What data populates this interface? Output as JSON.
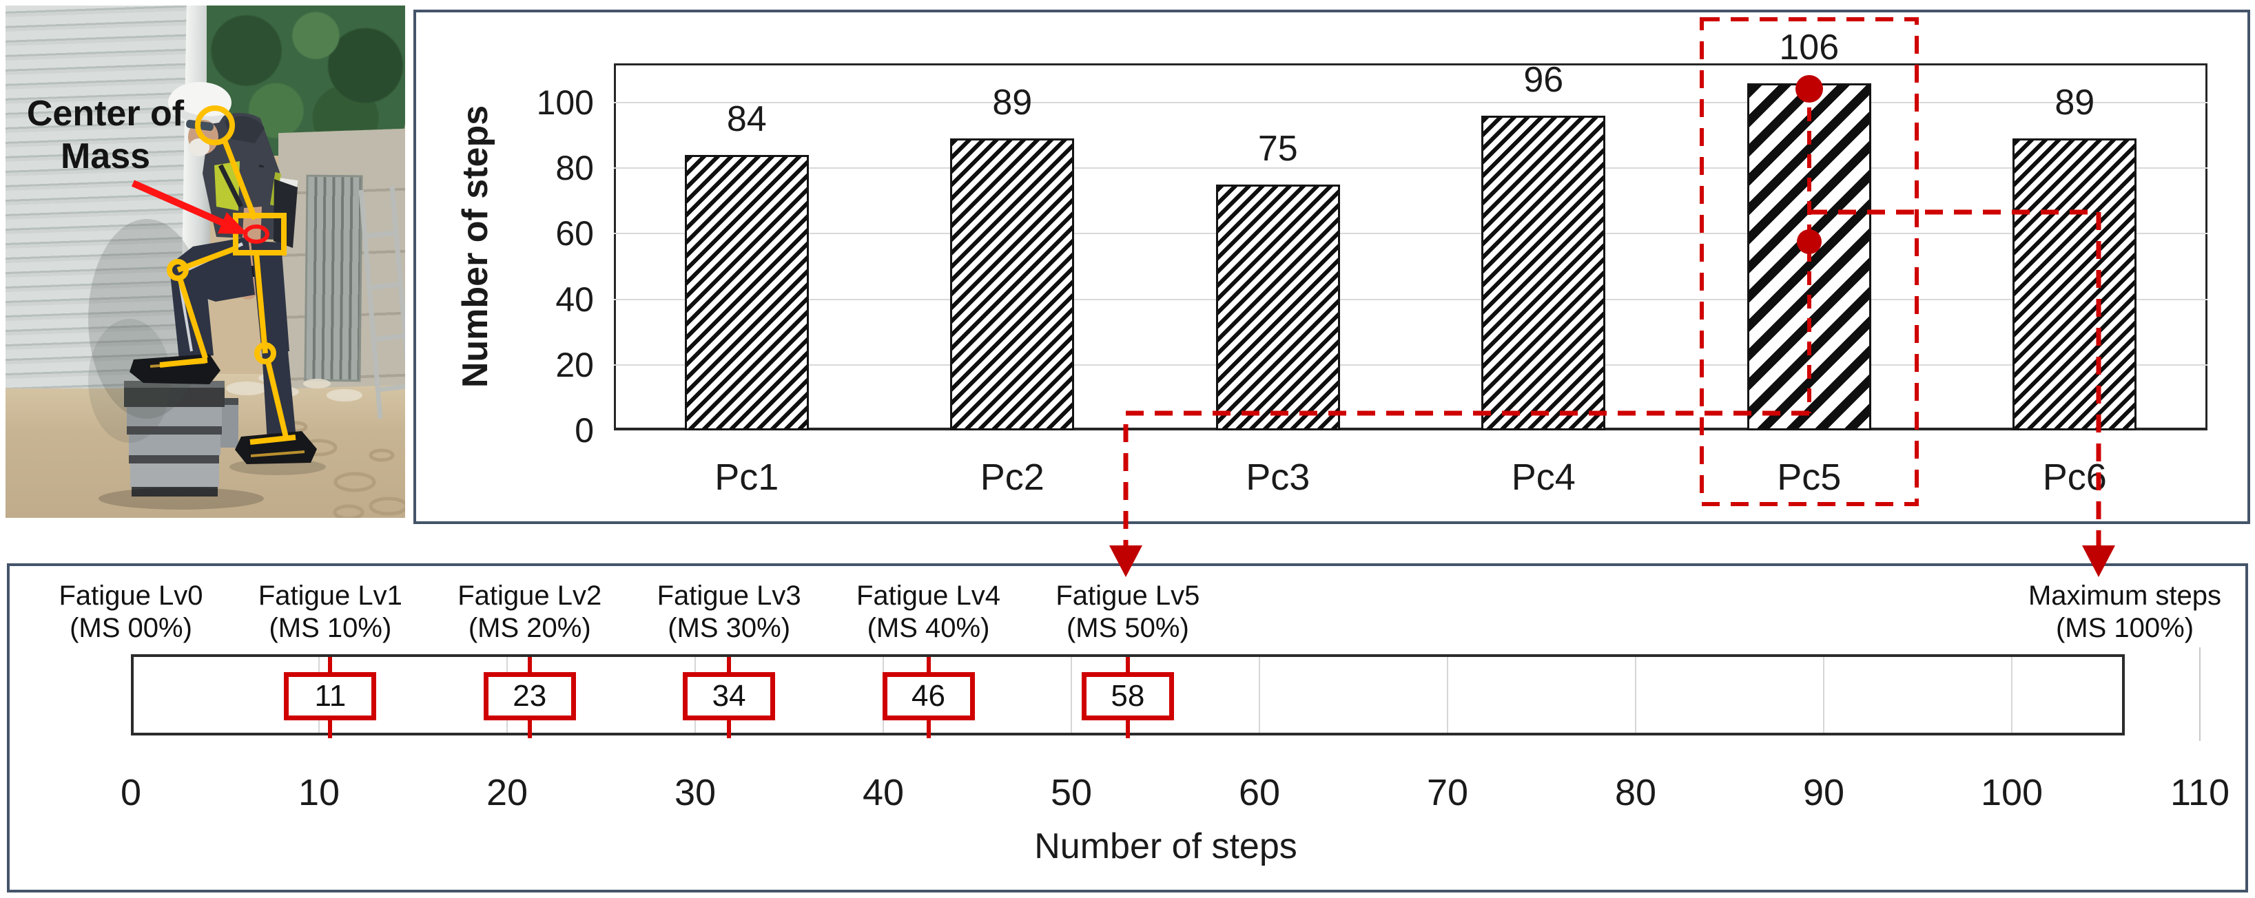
{
  "figure": {
    "photo": {
      "annotation": {
        "line1": "Center of",
        "line2": "Mass"
      }
    },
    "top_chart": {
      "y_axis_label": "Number of steps",
      "y_ticks": [
        0,
        20,
        40,
        60,
        80,
        100
      ],
      "categories": [
        "Pc1",
        "Pc2",
        "Pc3",
        "Pc4",
        "Pc5",
        "Pc6"
      ],
      "values": [
        84,
        89,
        75,
        96,
        106,
        89
      ],
      "highlighted_category": "Pc5",
      "pc5_marker_values": [
        106,
        58
      ]
    },
    "bottom_scale": {
      "levels": [
        {
          "line1": "Fatigue Lv0",
          "line2": "(MS 00%)",
          "ms_percent": 0,
          "value": null
        },
        {
          "line1": "Fatigue Lv1",
          "line2": "(MS 10%)",
          "ms_percent": 10,
          "value": 11
        },
        {
          "line1": "Fatigue Lv2",
          "line2": "(MS 20%)",
          "ms_percent": 20,
          "value": 23
        },
        {
          "line1": "Fatigue Lv3",
          "line2": "(MS 30%)",
          "ms_percent": 30,
          "value": 34
        },
        {
          "line1": "Fatigue Lv4",
          "line2": "(MS 40%)",
          "ms_percent": 40,
          "value": 46
        },
        {
          "line1": "Fatigue Lv5",
          "line2": "(MS 50%)",
          "ms_percent": 50,
          "value": 58
        }
      ],
      "max_label": {
        "line1": "Maximum steps",
        "line2": "(MS 100%)"
      },
      "x_ticks": [
        0,
        10,
        20,
        30,
        40,
        50,
        60,
        70,
        80,
        90,
        100,
        110
      ],
      "x_axis_label": "Number of steps",
      "bar_end_value": 106
    },
    "colors": {
      "accent_red": "#cf0000",
      "skeleton_yellow": "#ffc000",
      "panel_border": "#44546a",
      "bar_hatch": "#0f0f0f"
    }
  },
  "chart_data": [
    {
      "type": "bar",
      "categories": [
        "Pc1",
        "Pc2",
        "Pc3",
        "Pc4",
        "Pc5",
        "Pc6"
      ],
      "values": [
        84,
        89,
        75,
        96,
        106,
        89
      ],
      "title": "",
      "xlabel": "",
      "ylabel": "Number of steps",
      "ylim": [
        0,
        112
      ],
      "yticks": [
        0,
        20,
        40,
        60,
        80,
        100
      ],
      "grid": true,
      "legend": "none",
      "bar_style": "black diagonal hatch on white; Pc5 uses coarser hatch",
      "highlight": {
        "category": "Pc5",
        "style": "red dashed rectangle with connectors to fatigue scale",
        "marker_values": [
          106,
          58
        ]
      }
    },
    {
      "type": "scale",
      "xlabel": "Number of steps",
      "xlim": [
        0,
        110
      ],
      "xticks": [
        0,
        10,
        20,
        30,
        40,
        50,
        60,
        70,
        80,
        90,
        100,
        110
      ],
      "bar_range": [
        0,
        106
      ],
      "thresholds": [
        {
          "label": "Fatigue Lv0 (MS 00%)",
          "value": null
        },
        {
          "label": "Fatigue Lv1 (MS 10%)",
          "value": 11
        },
        {
          "label": "Fatigue Lv2 (MS 20%)",
          "value": 23
        },
        {
          "label": "Fatigue Lv3 (MS 30%)",
          "value": 34
        },
        {
          "label": "Fatigue Lv4 (MS 40%)",
          "value": 46
        },
        {
          "label": "Fatigue Lv5 (MS 50%)",
          "value": 58
        },
        {
          "label": "Maximum steps (MS 100%)",
          "value": 106
        }
      ]
    }
  ]
}
